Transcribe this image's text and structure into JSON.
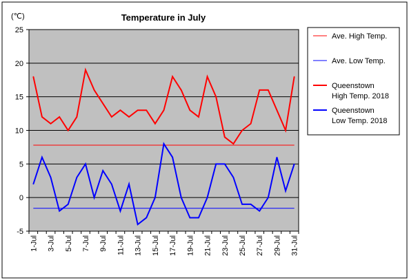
{
  "chart_data": {
    "type": "line",
    "title": "Temperature in July",
    "unit_label": "(℃)",
    "ylim": [
      -5,
      25
    ],
    "yticks": [
      -5,
      0,
      5,
      10,
      15,
      20,
      25
    ],
    "grid": true,
    "legend_position": "right",
    "categories": [
      "1-Jul",
      "2-Jul",
      "3-Jul",
      "4-Jul",
      "5-Jul",
      "6-Jul",
      "7-Jul",
      "8-Jul",
      "9-Jul",
      "10-Jul",
      "11-Jul",
      "12-Jul",
      "13-Jul",
      "14-Jul",
      "15-Jul",
      "16-Jul",
      "17-Jul",
      "18-Jul",
      "19-Jul",
      "20-Jul",
      "21-Jul",
      "22-Jul",
      "23-Jul",
      "24-Jul",
      "25-Jul",
      "26-Jul",
      "27-Jul",
      "28-Jul",
      "29-Jul",
      "30-Jul",
      "31-Jul"
    ],
    "tick_labels": [
      "1-Jul",
      "3-Jul",
      "5-Jul",
      "7-Jul",
      "9-Jul",
      "11-Jul",
      "13-Jul",
      "15-Jul",
      "17-Jul",
      "19-Jul",
      "21-Jul",
      "23-Jul",
      "25-Jul",
      "27-Jul",
      "29-Jul",
      "31-Jul"
    ],
    "series": [
      {
        "name": "Ave. High Temp.",
        "color": "#ff0000",
        "width": 1,
        "constant": 7.8
      },
      {
        "name": "Ave. Low Temp.",
        "color": "#0000ff",
        "width": 1,
        "constant": -1.6
      },
      {
        "name": "Queenstown\nHigh Temp. 2018",
        "color": "#ff0000",
        "width": 2,
        "values": [
          18,
          12,
          11,
          12,
          10,
          12,
          19,
          16,
          14,
          12,
          13,
          12,
          13,
          13,
          11,
          13,
          18,
          16,
          13,
          12,
          18,
          15,
          9,
          8,
          10,
          11,
          16,
          16,
          13,
          10,
          18
        ]
      },
      {
        "name": "Queenstown\nLow Temp. 2018",
        "color": "#0000ff",
        "width": 2,
        "values": [
          2,
          6,
          3,
          -2,
          -1,
          3,
          5,
          0,
          4,
          2,
          -2,
          2,
          -4,
          -3,
          0,
          8,
          6,
          0,
          -3,
          -3,
          0,
          5,
          5,
          3,
          -1,
          -1,
          -2,
          0,
          6,
          1,
          5
        ]
      }
    ]
  }
}
